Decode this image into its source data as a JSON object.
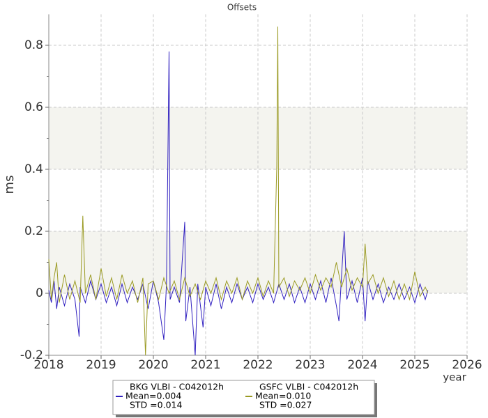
{
  "chart_data": {
    "type": "line",
    "title": "Offsets",
    "x_label": "year",
    "y_label": "ms",
    "xlim": [
      2018,
      2026
    ],
    "xticks": [
      2018,
      2019,
      2020,
      2021,
      2022,
      2023,
      2024,
      2025,
      2026
    ],
    "ylim": [
      -0.2,
      0.9
    ],
    "yticks": [
      -0.2,
      0,
      0.2,
      0.4,
      0.6,
      0.8
    ],
    "yminorticks": [
      -0.1,
      0.1,
      0.3,
      0.5,
      0.7
    ],
    "shaded_bands": [
      [
        0,
        0.2
      ],
      [
        0.4,
        0.6
      ]
    ],
    "grid": true,
    "series": [
      {
        "name": "BKG VLBI - C042012h",
        "stats": [
          "Mean=0.004",
          "STD =0.014"
        ],
        "color": "#3020c0",
        "x": [
          2018.0,
          2018.05,
          2018.1,
          2018.15,
          2018.2,
          2018.3,
          2018.4,
          2018.5,
          2018.58,
          2018.6,
          2018.7,
          2018.8,
          2018.9,
          2019.0,
          2019.1,
          2019.2,
          2019.3,
          2019.4,
          2019.5,
          2019.6,
          2019.7,
          2019.8,
          2019.9,
          2020.0,
          2020.1,
          2020.2,
          2020.25,
          2020.3,
          2020.32,
          2020.4,
          2020.5,
          2020.6,
          2020.62,
          2020.7,
          2020.8,
          2020.85,
          2020.95,
          2021.0,
          2021.1,
          2021.2,
          2021.3,
          2021.4,
          2021.5,
          2021.6,
          2021.7,
          2021.8,
          2021.9,
          2022.0,
          2022.1,
          2022.2,
          2022.3,
          2022.4,
          2022.5,
          2022.6,
          2022.7,
          2022.8,
          2022.9,
          2023.0,
          2023.1,
          2023.2,
          2023.3,
          2023.4,
          2023.5,
          2023.55,
          2023.6,
          2023.65,
          2023.7,
          2023.8,
          2023.9,
          2024.0,
          2024.05,
          2024.1,
          2024.2,
          2024.3,
          2024.4,
          2024.5,
          2024.6,
          2024.7,
          2024.8,
          2024.9,
          2025.0,
          2025.1,
          2025.2,
          2025.25
        ],
        "values": [
          0.01,
          -0.03,
          0.04,
          -0.05,
          0.02,
          -0.04,
          0.03,
          -0.02,
          -0.14,
          0.02,
          -0.03,
          0.04,
          -0.02,
          0.03,
          -0.03,
          0.02,
          -0.04,
          0.03,
          -0.03,
          0.02,
          -0.02,
          0.03,
          -0.05,
          0.04,
          -0.03,
          -0.15,
          0.03,
          0.78,
          -0.02,
          0.02,
          -0.03,
          0.23,
          -0.09,
          0.02,
          -0.2,
          0.03,
          -0.11,
          0.02,
          -0.04,
          0.03,
          -0.05,
          0.02,
          -0.03,
          0.03,
          -0.02,
          0.02,
          -0.03,
          0.03,
          -0.02,
          0.02,
          -0.03,
          0.03,
          -0.02,
          0.03,
          -0.03,
          0.02,
          -0.03,
          0.03,
          -0.02,
          0.04,
          -0.03,
          0.05,
          -0.04,
          -0.09,
          0.06,
          0.2,
          -0.02,
          0.04,
          -0.03,
          0.05,
          -0.09,
          0.04,
          -0.02,
          0.03,
          -0.03,
          0.02,
          -0.02,
          0.03,
          -0.02,
          0.02,
          -0.03,
          0.03,
          -0.02,
          0.01
        ]
      },
      {
        "name": "GSFC VLBI - C042012h",
        "stats": [
          "Mean=0.010",
          "STD =0.027"
        ],
        "color": "#9a9a22",
        "x": [
          2018.0,
          2018.05,
          2018.1,
          2018.15,
          2018.2,
          2018.3,
          2018.4,
          2018.5,
          2018.6,
          2018.65,
          2018.7,
          2018.8,
          2018.9,
          2019.0,
          2019.1,
          2019.2,
          2019.3,
          2019.4,
          2019.5,
          2019.6,
          2019.7,
          2019.8,
          2019.85,
          2019.9,
          2020.0,
          2020.1,
          2020.2,
          2020.3,
          2020.4,
          2020.5,
          2020.6,
          2020.7,
          2020.8,
          2020.9,
          2021.0,
          2021.1,
          2021.2,
          2021.3,
          2021.4,
          2021.5,
          2021.6,
          2021.7,
          2021.8,
          2021.9,
          2022.0,
          2022.1,
          2022.2,
          2022.3,
          2022.36,
          2022.38,
          2022.4,
          2022.5,
          2022.6,
          2022.7,
          2022.8,
          2022.9,
          2023.0,
          2023.1,
          2023.2,
          2023.3,
          2023.4,
          2023.5,
          2023.6,
          2023.7,
          2023.8,
          2023.9,
          2024.0,
          2024.05,
          2024.1,
          2024.2,
          2024.3,
          2024.4,
          2024.5,
          2024.6,
          2024.7,
          2024.8,
          2024.9,
          2025.0,
          2025.1,
          2025.2,
          2025.25
        ],
        "values": [
          0.11,
          -0.02,
          0.05,
          0.1,
          -0.03,
          0.06,
          -0.02,
          0.04,
          -0.03,
          0.25,
          0.0,
          0.06,
          -0.02,
          0.08,
          -0.01,
          0.05,
          -0.02,
          0.06,
          0.0,
          0.04,
          -0.03,
          0.05,
          -0.2,
          0.03,
          0.04,
          -0.02,
          0.05,
          0.0,
          0.04,
          -0.02,
          0.05,
          -0.01,
          0.03,
          -0.02,
          0.04,
          0.0,
          0.05,
          -0.02,
          0.04,
          0.0,
          0.05,
          -0.02,
          0.04,
          0.0,
          0.05,
          -0.01,
          0.04,
          0.0,
          0.41,
          0.86,
          0.02,
          0.05,
          -0.01,
          0.04,
          0.01,
          0.05,
          0.0,
          0.06,
          0.01,
          0.05,
          0.02,
          0.1,
          0.02,
          0.08,
          0.01,
          0.05,
          0.02,
          0.16,
          0.03,
          0.06,
          0.0,
          0.05,
          -0.01,
          0.04,
          -0.02,
          0.03,
          -0.02,
          0.07,
          -0.01,
          0.02,
          0.0
        ]
      }
    ]
  }
}
